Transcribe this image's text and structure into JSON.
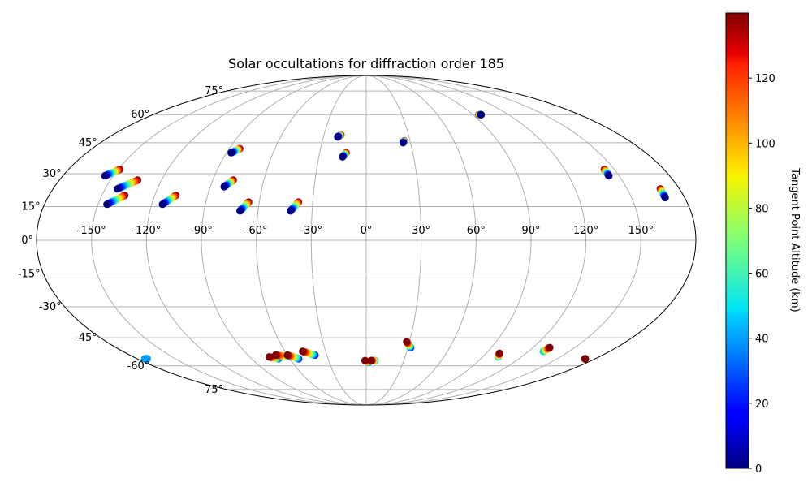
{
  "chart_data": {
    "type": "scatter",
    "projection": "mollweide",
    "title": "Solar occultations for diffraction order 185",
    "lon_ticks": [
      "-150°",
      "-120°",
      "-90°",
      "-60°",
      "-30°",
      "0°",
      "30°",
      "60°",
      "90°",
      "120°",
      "150°"
    ],
    "lon_tick_values": [
      -150,
      -120,
      -90,
      -60,
      -30,
      0,
      30,
      60,
      90,
      120,
      150
    ],
    "lat_ticks": [
      "75°",
      "60°",
      "45°",
      "30°",
      "15°",
      "0°",
      "-15°",
      "-30°",
      "-45°",
      "-60°",
      "-75°"
    ],
    "lat_tick_values": [
      75,
      60,
      45,
      30,
      15,
      0,
      -15,
      -30,
      -45,
      -60,
      -75
    ],
    "grid": true,
    "colorbar": {
      "label": "Tangent Point Altitude (km)",
      "cmap": "jet",
      "range": [
        0,
        140
      ],
      "ticks": [
        "0",
        "20",
        "40",
        "60",
        "80",
        "100",
        "120"
      ],
      "tick_values": [
        0,
        20,
        40,
        60,
        80,
        100,
        120
      ],
      "placement": "right"
    },
    "tracks": [
      {
        "lon_start": -155,
        "lat_start": 29,
        "lon_end": -149,
        "lat_end": 32,
        "alt_start": 0,
        "alt_end": 140
      },
      {
        "lon_start": -143,
        "lat_start": 23,
        "lon_end": -134,
        "lat_end": 27,
        "alt_start": 0,
        "alt_end": 140
      },
      {
        "lon_start": -145,
        "lat_start": 16,
        "lon_end": -137,
        "lat_end": 20,
        "alt_start": 0,
        "alt_end": 140
      },
      {
        "lon_start": -114,
        "lat_start": 16,
        "lon_end": -108,
        "lat_end": 20,
        "alt_start": 0,
        "alt_end": 140
      },
      {
        "lon_start": -87,
        "lat_start": 40,
        "lon_end": -83,
        "lat_end": 42,
        "alt_start": 0,
        "alt_end": 140
      },
      {
        "lon_start": -82,
        "lat_start": 24,
        "lon_end": -78,
        "lat_end": 27,
        "alt_start": 0,
        "alt_end": 140
      },
      {
        "lon_start": -70,
        "lat_start": 13,
        "lon_end": -66,
        "lat_end": 17,
        "alt_start": 0,
        "alt_end": 140
      },
      {
        "lon_start": -42,
        "lat_start": 13,
        "lon_end": -38,
        "lat_end": 17,
        "alt_start": 0,
        "alt_end": 140
      },
      {
        "lon_start": -20,
        "lat_start": 48,
        "lon_end": -18,
        "lat_end": 49,
        "alt_start": 0,
        "alt_end": 140
      },
      {
        "lon_start": -15,
        "lat_start": 38,
        "lon_end": -13,
        "lat_end": 40,
        "alt_start": 0,
        "alt_end": 140
      },
      {
        "lon_start": 25,
        "lat_start": 45,
        "lon_end": 26,
        "lat_end": 46,
        "alt_start": 0,
        "alt_end": 140
      },
      {
        "lon_start": 97,
        "lat_start": 60,
        "lon_end": 95,
        "lat_end": 60,
        "alt_start": 0,
        "alt_end": 140
      },
      {
        "lon_start": 144,
        "lat_start": 29,
        "lon_end": 144,
        "lat_end": 32,
        "alt_start": 0,
        "alt_end": 140
      },
      {
        "lon_start": 169,
        "lat_start": 19,
        "lon_end": 169,
        "lat_end": 23,
        "alt_start": 0,
        "alt_end": 140
      },
      {
        "lon_start": -174,
        "lat_start": -56,
        "lon_end": -172,
        "lat_end": -56,
        "alt_start": 40,
        "alt_end": 40
      },
      {
        "lon_start": -75,
        "lat_start": -55,
        "lon_end": -69,
        "lat_end": -56,
        "alt_start": 140,
        "alt_end": 30
      },
      {
        "lon_start": -69,
        "lat_start": -54,
        "lon_end": -58,
        "lat_end": -55,
        "alt_start": 140,
        "alt_end": 20
      },
      {
        "lon_start": -60,
        "lat_start": -54,
        "lon_end": -53,
        "lat_end": -56,
        "alt_start": 140,
        "alt_end": 20
      },
      {
        "lon_start": -47,
        "lat_start": -52,
        "lon_end": -39,
        "lat_end": -54,
        "alt_start": 140,
        "alt_end": 20
      },
      {
        "lon_start": -1,
        "lat_start": -57,
        "lon_end": 2,
        "lat_end": -58,
        "alt_start": 140,
        "alt_end": 30
      },
      {
        "lon_start": 4,
        "lat_start": -57,
        "lon_end": 7,
        "lat_end": -57,
        "alt_start": 140,
        "alt_end": 40
      },
      {
        "lon_start": 28,
        "lat_start": -47,
        "lon_end": 32,
        "lat_end": -50,
        "alt_start": 140,
        "alt_end": 20
      },
      {
        "lon_start": 100,
        "lat_start": -53,
        "lon_end": 102,
        "lat_end": -55,
        "alt_start": 140,
        "alt_end": 40
      },
      {
        "lon_start": 132,
        "lat_start": -50,
        "lon_end": 131,
        "lat_end": -52,
        "alt_start": 140,
        "alt_end": 40
      },
      {
        "lon_start": 172,
        "lat_start": -56,
        "lon_end": 172,
        "lat_end": -56,
        "alt_start": 140,
        "alt_end": 140
      }
    ]
  }
}
